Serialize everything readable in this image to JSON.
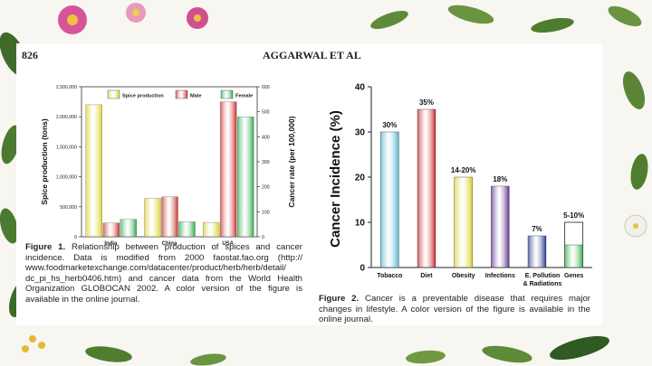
{
  "header": {
    "page_number": "826",
    "running_title": "AGGARWAL ET AL"
  },
  "colors": {
    "spice": "#d9d12c",
    "male": "#c8302a",
    "female": "#2ea94a"
  },
  "figure1": {
    "caption_label": "Figure 1.",
    "caption_text": " Relationship between production of spices and cancer incidence. Data is modified from 2000 faostat.fao.org (http:// www.foodmarketexchange.com/datacenter/product/herb/herb/detail/ dc_pi_hs_herb0406.htm) and cancer data from the World Health Organization GLOBOCAN 2002. A color version of the figure is available in the online journal."
  },
  "figure2": {
    "caption_label": "Figure 2.",
    "caption_text": " Cancer is a preventable disease that requires major changes in lifestyle. A color version of the figure is available in the online journal."
  },
  "chart_data": [
    {
      "type": "bar",
      "categories": [
        "India",
        "China",
        "USA"
      ],
      "series": [
        {
          "name": "Spice production",
          "axis": "left",
          "values": [
            2200000,
            640000,
            240000
          ]
        },
        {
          "name": "Male",
          "axis": "right",
          "values": [
            55,
            160,
            540
          ]
        },
        {
          "name": "Female",
          "axis": "right",
          "values": [
            70,
            60,
            480
          ]
        }
      ],
      "ylabel": "Spice production (tons)",
      "ylabel_right": "Cancer rate (per 100,000)",
      "ylim": [
        0,
        2500000
      ],
      "ylim_right": [
        0,
        600
      ],
      "yticks": [
        "0",
        "500,000",
        "1,000,000",
        "1,500,000",
        "2,000,000",
        "2,500,000"
      ],
      "yticks_right": [
        "0",
        "100",
        "200",
        "300",
        "400",
        "500",
        "600"
      ],
      "legend_position": "top"
    },
    {
      "type": "bar",
      "categories": [
        "Tobacco",
        "Diet",
        "Obesity",
        "Infections",
        "E. Pollution & Radiations",
        "Genes"
      ],
      "values": [
        30,
        35,
        20,
        18,
        7,
        10
      ],
      "data_labels": [
        "30%",
        "35%",
        "14-20%",
        "18%",
        "7%",
        "5-10%"
      ],
      "ylabel": "Cancer Incidence (%)",
      "ylim": [
        0,
        40
      ],
      "yticks": [
        "0",
        "10",
        "20",
        "30",
        "40"
      ],
      "bar_colors": [
        "#4fb7cc",
        "#c4252a",
        "#d8d12a",
        "#5c2e8a",
        "#27378f",
        "#33ae4a"
      ],
      "genes_filled_value": 5
    }
  ]
}
